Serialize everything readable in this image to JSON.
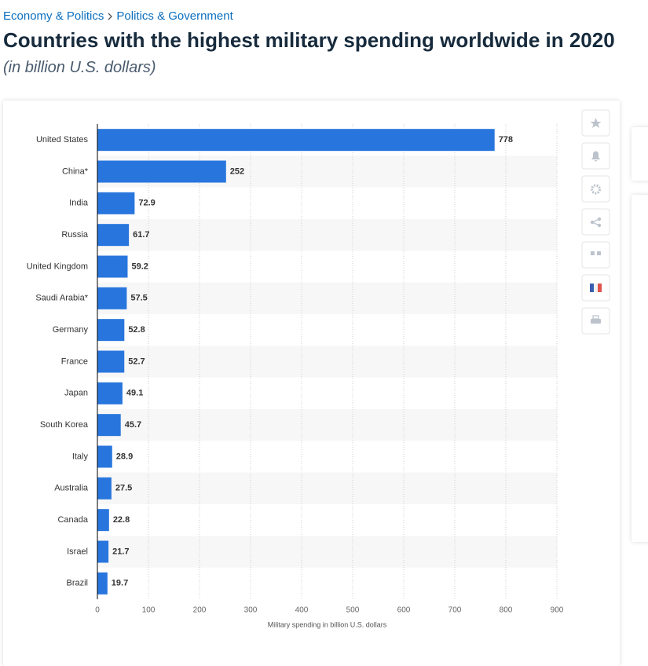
{
  "breadcrumb": [
    "Economy & Politics",
    "Politics & Government"
  ],
  "title": "Countries with the highest military spending worldwide in 2020",
  "subtitle": "(in billion U.S. dollars)",
  "chart_data": {
    "type": "bar",
    "orientation": "horizontal",
    "categories": [
      "United States",
      "China*",
      "India",
      "Russia",
      "United Kingdom",
      "Saudi Arabia*",
      "Germany",
      "France",
      "Japan",
      "South Korea",
      "Italy",
      "Australia",
      "Canada",
      "Israel",
      "Brazil"
    ],
    "values": [
      778,
      252,
      72.9,
      61.7,
      59.2,
      57.5,
      52.8,
      52.7,
      49.1,
      45.7,
      28.9,
      27.5,
      22.8,
      21.7,
      19.7
    ],
    "color": "#2876dd",
    "xlim": [
      0,
      900
    ],
    "xticks": [
      0,
      100,
      200,
      300,
      400,
      500,
      600,
      700,
      800,
      900
    ],
    "xlabel": "Military spending in billion U.S. dollars",
    "grid": true
  }
}
